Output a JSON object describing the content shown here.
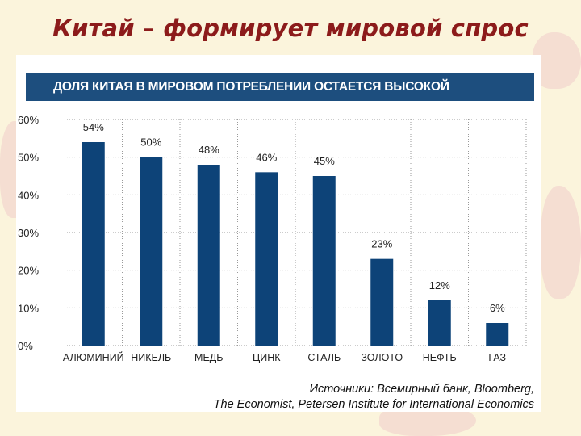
{
  "slide": {
    "title": "Китай – формирует мировой спрос"
  },
  "colors": {
    "bar": "#0d4378",
    "banner": "#1d4e7e",
    "title": "#8c1b1b",
    "background": "#fbf4dc"
  },
  "chart_data": {
    "type": "bar",
    "title": "ДОЛЯ КИТАЯ В МИРОВОМ ПОТРЕБЛЕНИИ ОСТАЕТСЯ ВЫСОКОЙ",
    "categories": [
      "АЛЮМИНИЙ",
      "НИКЕЛЬ",
      "МЕДЬ",
      "ЦИНК",
      "СТАЛЬ",
      "ЗОЛОТО",
      "НЕФТЬ",
      "ГАЗ"
    ],
    "values": [
      54,
      50,
      48,
      46,
      45,
      23,
      12,
      6
    ],
    "data_labels": [
      "54%",
      "50%",
      "48%",
      "46%",
      "45%",
      "23%",
      "12%",
      "6%"
    ],
    "y_ticks": [
      "0%",
      "10%",
      "20%",
      "30%",
      "40%",
      "50%",
      "60%"
    ],
    "ylim": [
      0,
      60
    ],
    "grid": true,
    "xlabel": "",
    "ylabel": ""
  },
  "source": {
    "line1": "Источники: Всемирный банк,  Bloomberg,",
    "line2": "The Economist, Petersen Institute for International Economics"
  }
}
